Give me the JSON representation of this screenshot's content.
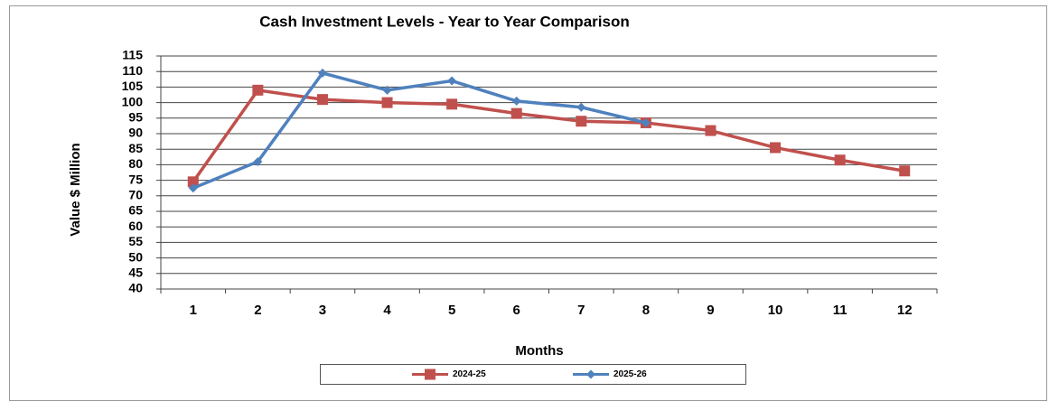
{
  "chart_data": {
    "type": "line",
    "title": "Cash Investment Levels - Year to Year Comparison",
    "x_label": "Months",
    "y_label": "Value $ Million",
    "categories": [
      "1",
      "2",
      "3",
      "4",
      "5",
      "6",
      "7",
      "8",
      "9",
      "10",
      "11",
      "12"
    ],
    "series": [
      {
        "name": "2024-25",
        "color": "#c0504d",
        "marker": "square",
        "values": [
          74.5,
          104,
          101,
          100,
          99.5,
          96.5,
          94,
          93.5,
          91,
          85.5,
          81.5,
          78
        ]
      },
      {
        "name": "2025-26",
        "color": "#4f81bd",
        "marker": "diamond",
        "values": [
          72.5,
          81,
          109.5,
          104,
          107,
          100.5,
          98.5,
          93.5,
          null,
          null,
          null,
          null
        ]
      }
    ],
    "ylim": [
      40,
      115
    ],
    "yticks": [
      40,
      45,
      50,
      55,
      60,
      65,
      70,
      75,
      80,
      85,
      90,
      95,
      100,
      105,
      110,
      115
    ],
    "grid": true,
    "legend": "bottom"
  }
}
